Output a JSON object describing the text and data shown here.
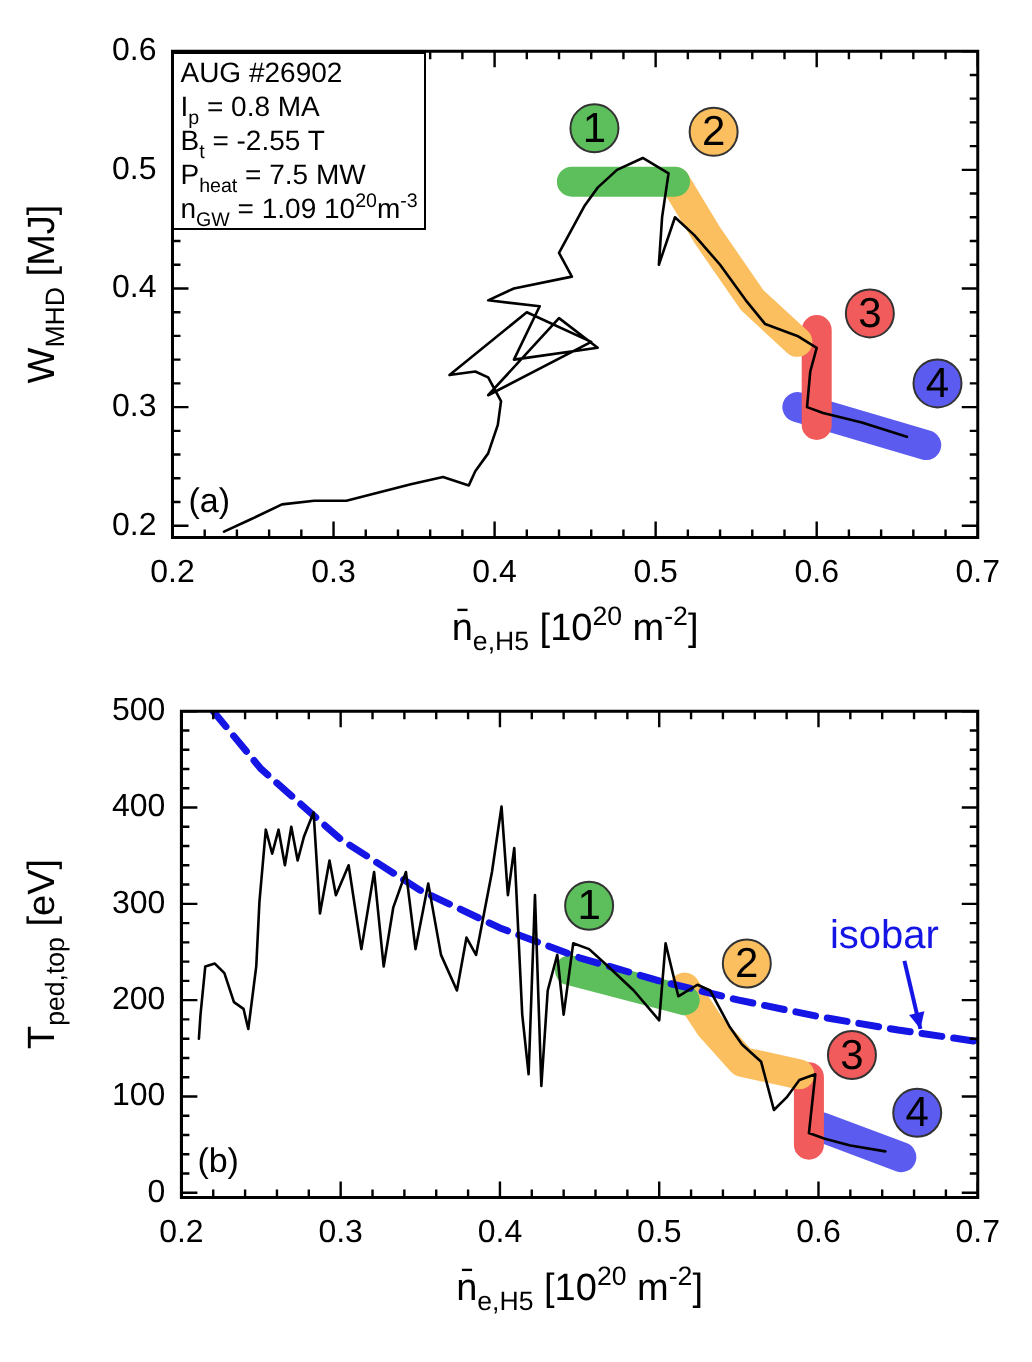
{
  "chart_data": [
    {
      "type": "line",
      "xlabel": "n̄$_{e,H5}$ [10$^{20}$ m$^{-2}$]",
      "ylabel": "W$_{MHD}$ [MJ]",
      "marker": "none",
      "xlim": [
        0.2,
        0.7
      ],
      "ylim": [
        0.19,
        0.6
      ],
      "xticks": [
        0.2,
        {
          "value": 0.22,
          "label": null
        },
        {
          "value": 0.24,
          "label": null
        },
        {
          "value": 0.26,
          "label": null
        },
        {
          "value": 0.28,
          "label": null
        },
        0.3,
        {
          "value": 0.32,
          "label": null
        },
        {
          "value": 0.34,
          "label": null
        },
        {
          "value": 0.36,
          "label": null
        },
        {
          "value": 0.38,
          "label": null
        },
        0.4,
        {
          "value": 0.42,
          "label": null
        },
        {
          "value": 0.44,
          "label": null
        },
        {
          "value": 0.46,
          "label": null
        },
        {
          "value": 0.48,
          "label": null
        },
        0.5,
        {
          "value": 0.52,
          "label": null
        },
        {
          "value": 0.54,
          "label": null
        },
        {
          "value": 0.56,
          "label": null
        },
        {
          "value": 0.58,
          "label": null
        },
        0.6,
        {
          "value": 0.62,
          "label": null
        },
        {
          "value": 0.64,
          "label": null
        },
        {
          "value": 0.66,
          "label": null
        },
        {
          "value": 0.68,
          "label": null
        },
        0.7
      ],
      "yticks": [
        0.2,
        {
          "value": 0.22,
          "label": null
        },
        {
          "value": 0.24,
          "label": null
        },
        {
          "value": 0.26,
          "label": null
        },
        {
          "value": 0.28,
          "label": null
        },
        0.3,
        {
          "value": 0.32,
          "label": null
        },
        {
          "value": 0.34,
          "label": null
        },
        {
          "value": 0.36,
          "label": null
        },
        {
          "value": 0.38,
          "label": null
        },
        0.4,
        {
          "value": 0.42,
          "label": null
        },
        {
          "value": 0.44,
          "label": null
        },
        {
          "value": 0.46,
          "label": null
        },
        {
          "value": 0.48,
          "label": null
        },
        0.5,
        {
          "value": 0.52,
          "label": null
        },
        {
          "value": 0.54,
          "label": null
        },
        {
          "value": 0.56,
          "label": null
        },
        {
          "value": 0.58,
          "label": null
        },
        0.6
      ],
      "series": [
        {
          "color": "#000000",
          "x": [
            0.232,
            0.248,
            0.268,
            0.288,
            0.308,
            0.328,
            0.348,
            0.368,
            0.384,
            0.388,
            0.396,
            0.402,
            0.404,
            0.396,
            0.388,
            0.372,
            0.42,
            0.46,
            0.396,
            0.44,
            0.464,
            0.412,
            0.428,
            0.396,
            0.412,
            0.448,
            0.44,
            0.448,
            0.456,
            0.464,
            0.476,
            0.492,
            0.508,
            0.504,
            0.502,
            0.512,
            0.524,
            0.54,
            0.556,
            0.568,
            0.588,
            0.6,
            0.596,
            0.594,
            0.604,
            0.628,
            0.656
          ],
          "values": [
            0.195,
            0.205,
            0.218,
            0.221,
            0.221,
            0.228,
            0.235,
            0.241,
            0.234,
            0.246,
            0.261,
            0.285,
            0.305,
            0.325,
            0.33,
            0.327,
            0.38,
            0.355,
            0.31,
            0.375,
            0.35,
            0.34,
            0.385,
            0.39,
            0.4,
            0.41,
            0.43,
            0.45,
            0.47,
            0.485,
            0.5,
            0.51,
            0.497,
            0.46,
            0.42,
            0.46,
            0.445,
            0.42,
            0.39,
            0.37,
            0.36,
            0.35,
            0.33,
            0.3,
            0.295,
            0.287,
            0.275
          ]
        },
        {
          "color": "#5cbf5c",
          "x": [
            0.448,
            0.512
          ],
          "values": [
            0.49,
            0.49
          ]
        },
        {
          "color": "#fbbf5f",
          "x": [
            0.512,
            0.532,
            0.56,
            0.588
          ],
          "values": [
            0.49,
            0.445,
            0.39,
            0.355
          ]
        },
        {
          "color": "#f25b5b",
          "x": [
            0.6,
            0.6
          ],
          "values": [
            0.365,
            0.285
          ]
        },
        {
          "color": "#5b5bf0",
          "x": [
            0.588,
            0.668
          ],
          "values": [
            0.3,
            0.268
          ]
        }
      ],
      "annotations": [
        {
          "text": "1",
          "x": 0.462,
          "y": 0.535
        },
        {
          "text": "2",
          "x": 0.536,
          "y": 0.532
        },
        {
          "text": "3",
          "x": 0.633,
          "y": 0.379
        },
        {
          "text": "4",
          "x": 0.675,
          "y": 0.32
        },
        "AUG #26902",
        "I$_{p}$ = 0.8 MA",
        "B$_{t}$ = -2.55 T",
        "P$_{heat}$ = 7.5 MW",
        "n$_{GW}$ = 1.09 10$^{20}$m$^{-3}$",
        "(a)"
      ]
    },
    {
      "type": "line",
      "xlabel": "n̄$_{e,H5}$ [10$^{20}$ m$^{-2}$]",
      "ylabel": "T$_{ped,top}$ [eV]",
      "marker": "none",
      "xlim": [
        0.2,
        0.7
      ],
      "ylim": [
        -5,
        500
      ],
      "xticks": [
        0.2,
        {
          "value": 0.22,
          "label": null
        },
        {
          "value": 0.24,
          "label": null
        },
        {
          "value": 0.26,
          "label": null
        },
        {
          "value": 0.28,
          "label": null
        },
        0.3,
        {
          "value": 0.32,
          "label": null
        },
        {
          "value": 0.34,
          "label": null
        },
        {
          "value": 0.36,
          "label": null
        },
        {
          "value": 0.38,
          "label": null
        },
        0.4,
        {
          "value": 0.42,
          "label": null
        },
        {
          "value": 0.44,
          "label": null
        },
        {
          "value": 0.46,
          "label": null
        },
        {
          "value": 0.48,
          "label": null
        },
        0.5,
        {
          "value": 0.52,
          "label": null
        },
        {
          "value": 0.54,
          "label": null
        },
        {
          "value": 0.56,
          "label": null
        },
        {
          "value": 0.58,
          "label": null
        },
        0.6,
        {
          "value": 0.62,
          "label": null
        },
        {
          "value": 0.64,
          "label": null
        },
        {
          "value": 0.66,
          "label": null
        },
        {
          "value": 0.68,
          "label": null
        },
        0.7
      ],
      "yticks": [
        0,
        {
          "value": 20,
          "label": null
        },
        {
          "value": 40,
          "label": null
        },
        {
          "value": 60,
          "label": null
        },
        {
          "value": 80,
          "label": null
        },
        100,
        {
          "value": 120,
          "label": null
        },
        {
          "value": 140,
          "label": null
        },
        {
          "value": 160,
          "label": null
        },
        {
          "value": 180,
          "label": null
        },
        200,
        {
          "value": 220,
          "label": null
        },
        {
          "value": 240,
          "label": null
        },
        {
          "value": 260,
          "label": null
        },
        {
          "value": 280,
          "label": null
        },
        300,
        {
          "value": 320,
          "label": null
        },
        {
          "value": 340,
          "label": null
        },
        {
          "value": 360,
          "label": null
        },
        {
          "value": 380,
          "label": null
        },
        400,
        {
          "value": 420,
          "label": null
        },
        {
          "value": 440,
          "label": null
        },
        {
          "value": 460,
          "label": null
        },
        {
          "value": 480,
          "label": null
        },
        500
      ],
      "series": [
        {
          "color": "#000000",
          "x": [
            0.211,
            0.212,
            0.215,
            0.221,
            0.227,
            0.233,
            0.239,
            0.242,
            0.247,
            0.249,
            0.253,
            0.257,
            0.261,
            0.265,
            0.269,
            0.273,
            0.277,
            0.283,
            0.287,
            0.293,
            0.297,
            0.305,
            0.313,
            0.321,
            0.327,
            0.333,
            0.341,
            0.347,
            0.355,
            0.363,
            0.373,
            0.379,
            0.385,
            0.395,
            0.401,
            0.405,
            0.409,
            0.414,
            0.418,
            0.422,
            0.426,
            0.43,
            0.436,
            0.44,
            0.446,
            0.456,
            0.468,
            0.484,
            0.5,
            0.504,
            0.512,
            0.524,
            0.532,
            0.544,
            0.552,
            0.564,
            0.572,
            0.58,
            0.588,
            0.598,
            0.594,
            0.604,
            0.62,
            0.642
          ],
          "values": [
            160,
            185,
            235,
            238,
            228,
            198,
            191,
            170,
            235,
            302,
            377,
            352,
            377,
            340,
            380,
            345,
            370,
            395,
            290,
            345,
            309,
            340,
            253,
            333,
            235,
            296,
            333,
            253,
            321,
            247,
            210,
            265,
            247,
            333,
            401,
            309,
            358,
            185,
            123,
            309,
            111,
            210,
            247,
            185,
            259,
            253,
            235,
            210,
            179,
            259,
            204,
            216,
            210,
            173,
            154,
            136,
            86,
            99,
            117,
            123,
            62,
            56,
            49,
            43
          ]
        },
        {
          "color": "#5cbf5c",
          "x": [
            0.444,
            0.516
          ],
          "values": [
            231,
            200
          ]
        },
        {
          "color": "#fbbf5f",
          "x": [
            0.516,
            0.532,
            0.552,
            0.588
          ],
          "values": [
            213,
            173,
            136,
            123
          ]
        },
        {
          "color": "#f25b5b",
          "x": [
            0.594,
            0.594
          ],
          "values": [
            120,
            50
          ]
        },
        {
          "color": "#5b5bf0",
          "x": [
            0.602,
            0.652
          ],
          "values": [
            68,
            37
          ]
        },
        {
          "color": "#1515e6",
          "line_style": "dashed",
          "x": [
            0.22,
            0.25,
            0.3,
            0.35,
            0.4,
            0.45,
            0.5,
            0.55,
            0.6,
            0.65,
            0.7
          ],
          "values": [
            500,
            440,
            367,
            314,
            275,
            244,
            220,
            200,
            183,
            169,
            157
          ]
        }
      ],
      "annotations": [
        {
          "text": "1",
          "x": 0.456,
          "y": 298
        },
        {
          "text": "2",
          "x": 0.555,
          "y": 238
        },
        {
          "text": "3",
          "x": 0.621,
          "y": 143
        },
        {
          "text": "4",
          "x": 0.662,
          "y": 83
        },
        {
          "text": "isobar",
          "x": 0.664,
          "y": 166
        },
        "(b)"
      ]
    }
  ]
}
